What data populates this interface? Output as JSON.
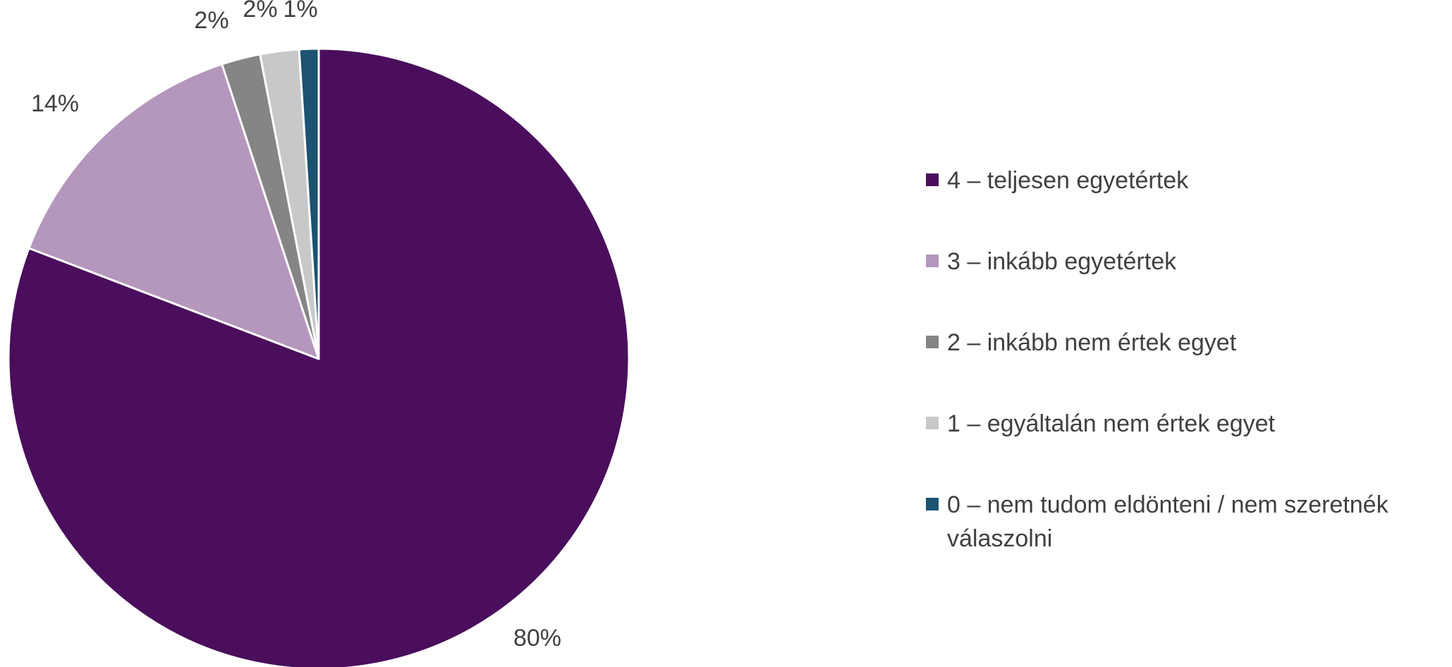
{
  "chart_data": {
    "type": "pie",
    "title": "",
    "start_angle": "12 o'clock, clockwise",
    "categories": [
      "4 – teljesen egyetértek",
      "3 – inkább egyetértek",
      "2 – inkább nem értek egyet",
      "1 – egyáltalán nem értek egyet",
      "0 – nem tudom eldönteni / nem szeretnék válaszolni"
    ],
    "values": [
      80,
      14,
      2,
      2,
      1
    ],
    "data_labels": [
      "80%",
      "14%",
      "2%",
      "2%",
      "1%"
    ],
    "colors": [
      "#4a0e5c",
      "#b596bc",
      "#858585",
      "#c8c8c8",
      "#1b5371"
    ],
    "legend": {
      "placement": "right",
      "items": [
        {
          "label": "4 – teljesen egyetértek",
          "color": "#4a0e5c"
        },
        {
          "label": "3 – inkább egyetértek",
          "color": "#b596bc"
        },
        {
          "label": "2 – inkább nem értek egyet",
          "color": "#858585"
        },
        {
          "label": "1 – egyáltalán nem értek egyet",
          "color": "#c8c8c8"
        },
        {
          "label": "0 – nem tudom eldönteni / nem szeretnék válaszolni",
          "color": "#1b5371"
        }
      ]
    }
  }
}
